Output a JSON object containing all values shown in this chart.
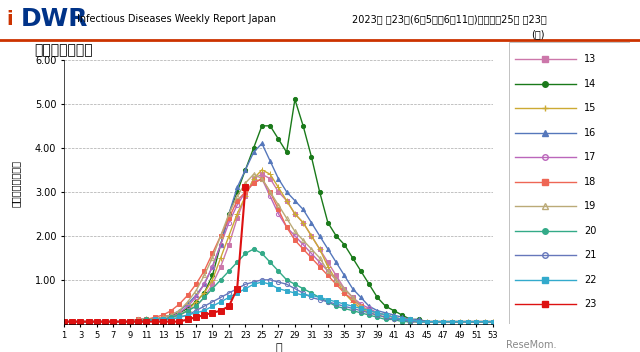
{
  "title": "ヘルパンギーナ",
  "header_title": "Infectious Diseases Weekly Report Japan",
  "header_year": "2023年 第23週(6月5日〜6月11日)：通巻第25巻 第23号",
  "xlabel": "週",
  "ylabel": "定点当たり報告数",
  "legend_title": "(年)",
  "ylim": [
    0,
    6.0
  ],
  "yticks": [
    1.0,
    2.0,
    3.0,
    4.0,
    5.0,
    6.0
  ],
  "xticks": [
    1,
    3,
    5,
    7,
    9,
    11,
    13,
    15,
    17,
    19,
    21,
    23,
    25,
    27,
    29,
    31,
    33,
    35,
    37,
    39,
    41,
    43,
    45,
    47,
    49,
    51,
    53
  ],
  "weeks": [
    1,
    2,
    3,
    4,
    5,
    6,
    7,
    8,
    9,
    10,
    11,
    12,
    13,
    14,
    15,
    16,
    17,
    18,
    19,
    20,
    21,
    22,
    23,
    24,
    25,
    26,
    27,
    28,
    29,
    30,
    31,
    32,
    33,
    34,
    35,
    36,
    37,
    38,
    39,
    40,
    41,
    42,
    43,
    44,
    45,
    46,
    47,
    48,
    49,
    50,
    51,
    52,
    53
  ],
  "series": {
    "13": {
      "color": "#cc77aa",
      "marker": "s",
      "markersize": 3,
      "linewidth": 1.0,
      "data": [
        0.05,
        0.05,
        0.05,
        0.05,
        0.05,
        0.05,
        0.05,
        0.05,
        0.05,
        0.1,
        0.1,
        0.1,
        0.1,
        0.15,
        0.2,
        0.3,
        0.4,
        0.6,
        0.9,
        1.3,
        1.8,
        2.4,
        2.9,
        3.3,
        3.4,
        3.3,
        3.0,
        2.8,
        2.5,
        2.3,
        2.0,
        1.7,
        1.4,
        1.1,
        0.8,
        0.6,
        0.4,
        0.3,
        0.25,
        0.2,
        0.15,
        0.1,
        0.1,
        0.05,
        0.05,
        0.05,
        0.05,
        0.05,
        0.05,
        0.05,
        0.05,
        0.05,
        0.05
      ]
    },
    "14": {
      "color": "#1a7a1a",
      "marker": "o",
      "markersize": 3,
      "linewidth": 1.0,
      "data": [
        0.05,
        0.05,
        0.05,
        0.05,
        0.05,
        0.05,
        0.05,
        0.05,
        0.05,
        0.1,
        0.1,
        0.1,
        0.15,
        0.2,
        0.25,
        0.35,
        0.5,
        0.7,
        1.1,
        1.8,
        2.5,
        3.0,
        3.5,
        4.0,
        4.5,
        4.5,
        4.2,
        3.9,
        5.1,
        4.5,
        3.8,
        3.0,
        2.3,
        2.0,
        1.8,
        1.5,
        1.2,
        0.9,
        0.6,
        0.4,
        0.3,
        0.2,
        0.1,
        0.1,
        0.05,
        0.05,
        0.05,
        0.05,
        0.05,
        0.05,
        0.05,
        0.05,
        0.05
      ]
    },
    "15": {
      "color": "#ccaa33",
      "marker": "+",
      "markersize": 4,
      "linewidth": 1.0,
      "data": [
        0.05,
        0.05,
        0.05,
        0.05,
        0.05,
        0.05,
        0.05,
        0.05,
        0.05,
        0.05,
        0.1,
        0.1,
        0.1,
        0.15,
        0.2,
        0.3,
        0.5,
        0.7,
        1.0,
        1.5,
        2.0,
        2.5,
        2.9,
        3.3,
        3.5,
        3.4,
        3.1,
        2.8,
        2.5,
        2.3,
        2.0,
        1.7,
        1.3,
        1.0,
        0.7,
        0.5,
        0.35,
        0.25,
        0.2,
        0.15,
        0.1,
        0.1,
        0.05,
        0.05,
        0.05,
        0.05,
        0.05,
        0.05,
        0.05,
        0.05,
        0.05,
        0.05,
        0.05
      ]
    },
    "16": {
      "color": "#5577bb",
      "marker": "^",
      "markersize": 3,
      "linewidth": 1.0,
      "data": [
        0.05,
        0.05,
        0.05,
        0.05,
        0.05,
        0.05,
        0.05,
        0.05,
        0.05,
        0.1,
        0.1,
        0.1,
        0.15,
        0.2,
        0.3,
        0.45,
        0.65,
        0.9,
        1.3,
        1.8,
        2.5,
        3.1,
        3.5,
        3.9,
        4.1,
        3.7,
        3.3,
        3.0,
        2.8,
        2.6,
        2.3,
        2.0,
        1.7,
        1.4,
        1.1,
        0.8,
        0.6,
        0.4,
        0.3,
        0.25,
        0.2,
        0.15,
        0.1,
        0.1,
        0.05,
        0.05,
        0.05,
        0.05,
        0.05,
        0.05,
        0.05,
        0.05,
        0.05
      ]
    },
    "17": {
      "color": "#bb66bb",
      "marker": "o",
      "markersize": 3,
      "linewidth": 1.0,
      "markerfacecolor": "none",
      "data": [
        0.05,
        0.05,
        0.05,
        0.05,
        0.05,
        0.05,
        0.05,
        0.05,
        0.05,
        0.1,
        0.1,
        0.1,
        0.1,
        0.15,
        0.25,
        0.4,
        0.6,
        0.9,
        1.3,
        1.8,
        2.3,
        2.7,
        3.0,
        3.2,
        3.3,
        2.9,
        2.5,
        2.2,
        2.0,
        1.8,
        1.6,
        1.4,
        1.2,
        1.0,
        0.8,
        0.6,
        0.45,
        0.35,
        0.25,
        0.2,
        0.15,
        0.1,
        0.1,
        0.05,
        0.05,
        0.05,
        0.05,
        0.05,
        0.05,
        0.05,
        0.05,
        0.05,
        0.05
      ]
    },
    "18": {
      "color": "#ee6655",
      "marker": "s",
      "markersize": 3,
      "linewidth": 1.0,
      "data": [
        0.05,
        0.05,
        0.05,
        0.05,
        0.05,
        0.05,
        0.05,
        0.05,
        0.05,
        0.1,
        0.1,
        0.15,
        0.2,
        0.3,
        0.45,
        0.65,
        0.9,
        1.2,
        1.6,
        2.0,
        2.4,
        2.8,
        3.0,
        3.2,
        3.3,
        3.0,
        2.6,
        2.2,
        1.9,
        1.7,
        1.5,
        1.3,
        1.1,
        0.9,
        0.7,
        0.55,
        0.4,
        0.3,
        0.25,
        0.2,
        0.15,
        0.1,
        0.1,
        0.05,
        0.05,
        0.05,
        0.05,
        0.05,
        0.05,
        0.05,
        0.05,
        0.05,
        0.05
      ]
    },
    "19": {
      "color": "#bbaa77",
      "marker": "^",
      "markersize": 3,
      "linewidth": 1.0,
      "markerfacecolor": "none",
      "data": [
        0.05,
        0.05,
        0.05,
        0.05,
        0.05,
        0.05,
        0.05,
        0.05,
        0.05,
        0.1,
        0.1,
        0.1,
        0.15,
        0.2,
        0.3,
        0.5,
        0.75,
        1.1,
        1.5,
        2.0,
        2.5,
        2.9,
        3.2,
        3.4,
        3.3,
        3.0,
        2.7,
        2.4,
        2.1,
        1.9,
        1.7,
        1.5,
        1.2,
        1.0,
        0.8,
        0.6,
        0.4,
        0.3,
        0.25,
        0.2,
        0.15,
        0.1,
        0.05,
        0.05,
        0.05,
        0.05,
        0.05,
        0.05,
        0.05,
        0.05,
        0.05,
        0.05,
        0.05
      ]
    },
    "20": {
      "color": "#33aa88",
      "marker": "o",
      "markersize": 3,
      "linewidth": 1.0,
      "data": [
        0.05,
        0.05,
        0.05,
        0.05,
        0.05,
        0.05,
        0.05,
        0.05,
        0.05,
        0.05,
        0.1,
        0.1,
        0.1,
        0.15,
        0.2,
        0.3,
        0.4,
        0.6,
        0.8,
        1.0,
        1.2,
        1.4,
        1.6,
        1.7,
        1.6,
        1.4,
        1.2,
        1.0,
        0.9,
        0.8,
        0.7,
        0.6,
        0.5,
        0.4,
        0.35,
        0.3,
        0.25,
        0.2,
        0.15,
        0.1,
        0.1,
        0.05,
        0.05,
        0.05,
        0.05,
        0.05,
        0.05,
        0.05,
        0.05,
        0.05,
        0.05,
        0.05,
        0.05
      ]
    },
    "21": {
      "color": "#6677bb",
      "marker": "o",
      "markersize": 3,
      "linewidth": 1.0,
      "markerfacecolor": "none",
      "data": [
        0.05,
        0.05,
        0.05,
        0.05,
        0.05,
        0.05,
        0.05,
        0.05,
        0.05,
        0.05,
        0.05,
        0.1,
        0.1,
        0.1,
        0.15,
        0.2,
        0.3,
        0.4,
        0.5,
        0.6,
        0.7,
        0.8,
        0.9,
        0.95,
        1.0,
        1.0,
        0.95,
        0.9,
        0.8,
        0.7,
        0.6,
        0.55,
        0.5,
        0.45,
        0.4,
        0.35,
        0.3,
        0.25,
        0.2,
        0.15,
        0.1,
        0.1,
        0.05,
        0.05,
        0.05,
        0.05,
        0.05,
        0.05,
        0.05,
        0.05,
        0.05,
        0.05,
        0.05
      ]
    },
    "22": {
      "color": "#33aacc",
      "marker": "s",
      "markersize": 3,
      "linewidth": 1.0,
      "data": [
        0.05,
        0.05,
        0.05,
        0.05,
        0.05,
        0.05,
        0.05,
        0.05,
        0.05,
        0.05,
        0.05,
        0.1,
        0.1,
        0.1,
        0.15,
        0.2,
        0.25,
        0.3,
        0.4,
        0.5,
        0.6,
        0.7,
        0.8,
        0.9,
        0.95,
        0.9,
        0.8,
        0.75,
        0.7,
        0.65,
        0.65,
        0.6,
        0.55,
        0.5,
        0.45,
        0.4,
        0.35,
        0.3,
        0.25,
        0.2,
        0.15,
        0.1,
        0.1,
        0.05,
        0.05,
        0.05,
        0.05,
        0.05,
        0.05,
        0.05,
        0.05,
        0.05,
        0.05
      ]
    },
    "23": {
      "color": "#dd1111",
      "marker": "s",
      "markersize": 4,
      "linewidth": 1.5,
      "data": [
        0.05,
        0.05,
        0.05,
        0.05,
        0.05,
        0.05,
        0.05,
        0.05,
        0.05,
        0.05,
        0.05,
        0.05,
        0.05,
        0.05,
        0.05,
        0.1,
        0.15,
        0.2,
        0.25,
        0.3,
        0.4,
        0.8,
        3.1,
        null,
        null,
        null,
        null,
        null,
        null,
        null,
        null,
        null,
        null,
        null,
        null,
        null,
        null,
        null,
        null,
        null,
        null,
        null,
        null,
        null,
        null,
        null,
        null,
        null,
        null,
        null,
        null,
        null,
        null
      ]
    }
  }
}
